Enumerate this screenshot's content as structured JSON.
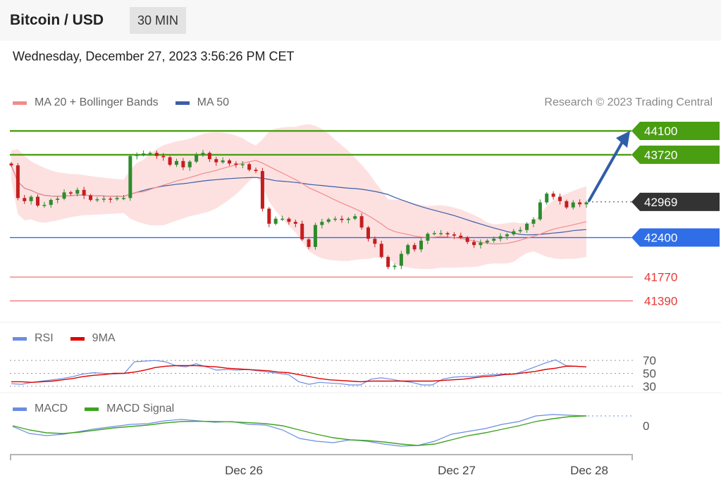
{
  "header": {
    "title": "Bitcoin / USD",
    "timeframe": "30 MIN"
  },
  "datetime": "Wednesday, December 27, 2023 3:56:26 PM CET",
  "legends": {
    "price": [
      {
        "label": "MA 20 + Bollinger Bands",
        "color": "#f28b8b"
      },
      {
        "label": "MA 50",
        "color": "#3b5ea8"
      }
    ],
    "rsi": [
      {
        "label": "RSI",
        "color": "#6b8de0"
      },
      {
        "label": "9MA",
        "color": "#e00000"
      }
    ],
    "macd": [
      {
        "label": "MACD",
        "color": "#6b8de0"
      },
      {
        "label": "MACD Signal",
        "color": "#3fa322"
      }
    ]
  },
  "credit": "Research © 2023 Trading Central",
  "colors": {
    "up": "#2e8b2e",
    "down": "#c41e1e",
    "resistance": "#4a9e12",
    "pivot": "#2f6ee6",
    "support": "#f08080",
    "last": "#333333",
    "arrow": "#2f5ea8",
    "band": "#fddcdc"
  },
  "chart_data": [
    {
      "type": "line",
      "title": "Bitcoin / USD 30 MIN",
      "ylim": [
        41160,
        44280
      ],
      "x_tick_labels": [
        "Dec 26",
        "Dec 27",
        "Dec 28"
      ],
      "levels": [
        {
          "value": 44100,
          "label": "44100",
          "role": "resistance"
        },
        {
          "value": 43720,
          "label": "43720",
          "role": "resistance"
        },
        {
          "value": 42969,
          "label": "42969",
          "role": "last"
        },
        {
          "value": 42400,
          "label": "42400",
          "role": "pivot"
        },
        {
          "value": 41770,
          "label": "41770",
          "role": "support"
        },
        {
          "value": 41390,
          "label": "41390",
          "role": "support"
        }
      ],
      "target_arrow": {
        "from": 42969,
        "to": 44100
      },
      "close_series": [
        43550,
        43030,
        42980,
        43050,
        42910,
        42920,
        43000,
        43020,
        43120,
        43100,
        43160,
        43070,
        43000,
        43010,
        43020,
        43010,
        43030,
        43030,
        43700,
        43720,
        43740,
        43750,
        43700,
        43680,
        43560,
        43620,
        43520,
        43610,
        43720,
        43750,
        43650,
        43600,
        43630,
        43580,
        43560,
        43570,
        43480,
        43460,
        42860,
        42620,
        42700,
        42700,
        42650,
        42620,
        42370,
        42250,
        42600,
        42650,
        42690,
        42700,
        42680,
        42700,
        42740,
        42560,
        42380,
        42300,
        42090,
        41930,
        41950,
        42140,
        42280,
        42210,
        42350,
        42460,
        42470,
        42470,
        42450,
        42430,
        42400,
        42330,
        42280,
        42320,
        42350,
        42380,
        42420,
        42450,
        42500,
        42520,
        42620,
        42690,
        42960,
        43100,
        43050,
        42980,
        42880,
        42960,
        42930,
        42960
      ]
    },
    {
      "type": "line",
      "title": "RSI",
      "ylim": [
        20,
        80
      ],
      "y_tick_labels": [
        "70",
        "50",
        "30"
      ],
      "levels": [
        70,
        50,
        30
      ],
      "series": [
        {
          "name": "RSI",
          "values": [
            34,
            33,
            36,
            38,
            40,
            42,
            45,
            49,
            51,
            50,
            49,
            50,
            68,
            69,
            70,
            68,
            62,
            60,
            65,
            60,
            55,
            56,
            55,
            56,
            54,
            52,
            50,
            48,
            37,
            33,
            36,
            35,
            34,
            32,
            32,
            41,
            43,
            41,
            38,
            36,
            32,
            32,
            41,
            44,
            45,
            45,
            47,
            48,
            49,
            49,
            54,
            60,
            66,
            71,
            62,
            61,
            60
          ]
        },
        {
          "name": "9MA",
          "values": [
            37,
            37,
            36,
            37,
            38,
            40,
            42,
            45,
            47,
            48,
            50,
            50,
            52,
            55,
            59,
            61,
            62,
            62,
            62,
            61,
            60,
            58,
            57,
            56,
            55,
            54,
            52,
            51,
            48,
            45,
            42,
            40,
            39,
            38,
            37,
            38,
            38,
            38,
            38,
            38,
            38,
            38,
            39,
            40,
            41,
            43,
            45,
            46,
            48,
            49,
            51,
            53,
            56,
            58,
            61,
            61,
            60
          ]
        }
      ]
    },
    {
      "type": "line",
      "title": "MACD",
      "y_tick_labels": [
        "0"
      ],
      "series": [
        {
          "name": "MACD",
          "values": [
            -5,
            -55,
            -70,
            -60,
            -40,
            -20,
            -5,
            10,
            15,
            35,
            45,
            35,
            25,
            30,
            10,
            5,
            -30,
            -90,
            -110,
            -120,
            -100,
            -110,
            -130,
            -145,
            -140,
            -110,
            -60,
            -40,
            -20,
            10,
            30,
            70,
            80,
            75,
            70
          ]
        },
        {
          "name": "MACD Signal",
          "values": [
            0,
            -30,
            -50,
            -55,
            -45,
            -30,
            -15,
            -5,
            5,
            20,
            30,
            32,
            30,
            28,
            22,
            15,
            0,
            -30,
            -60,
            -85,
            -100,
            -105,
            -115,
            -130,
            -140,
            -130,
            -100,
            -70,
            -50,
            -25,
            0,
            30,
            50,
            65,
            70
          ]
        }
      ]
    }
  ]
}
